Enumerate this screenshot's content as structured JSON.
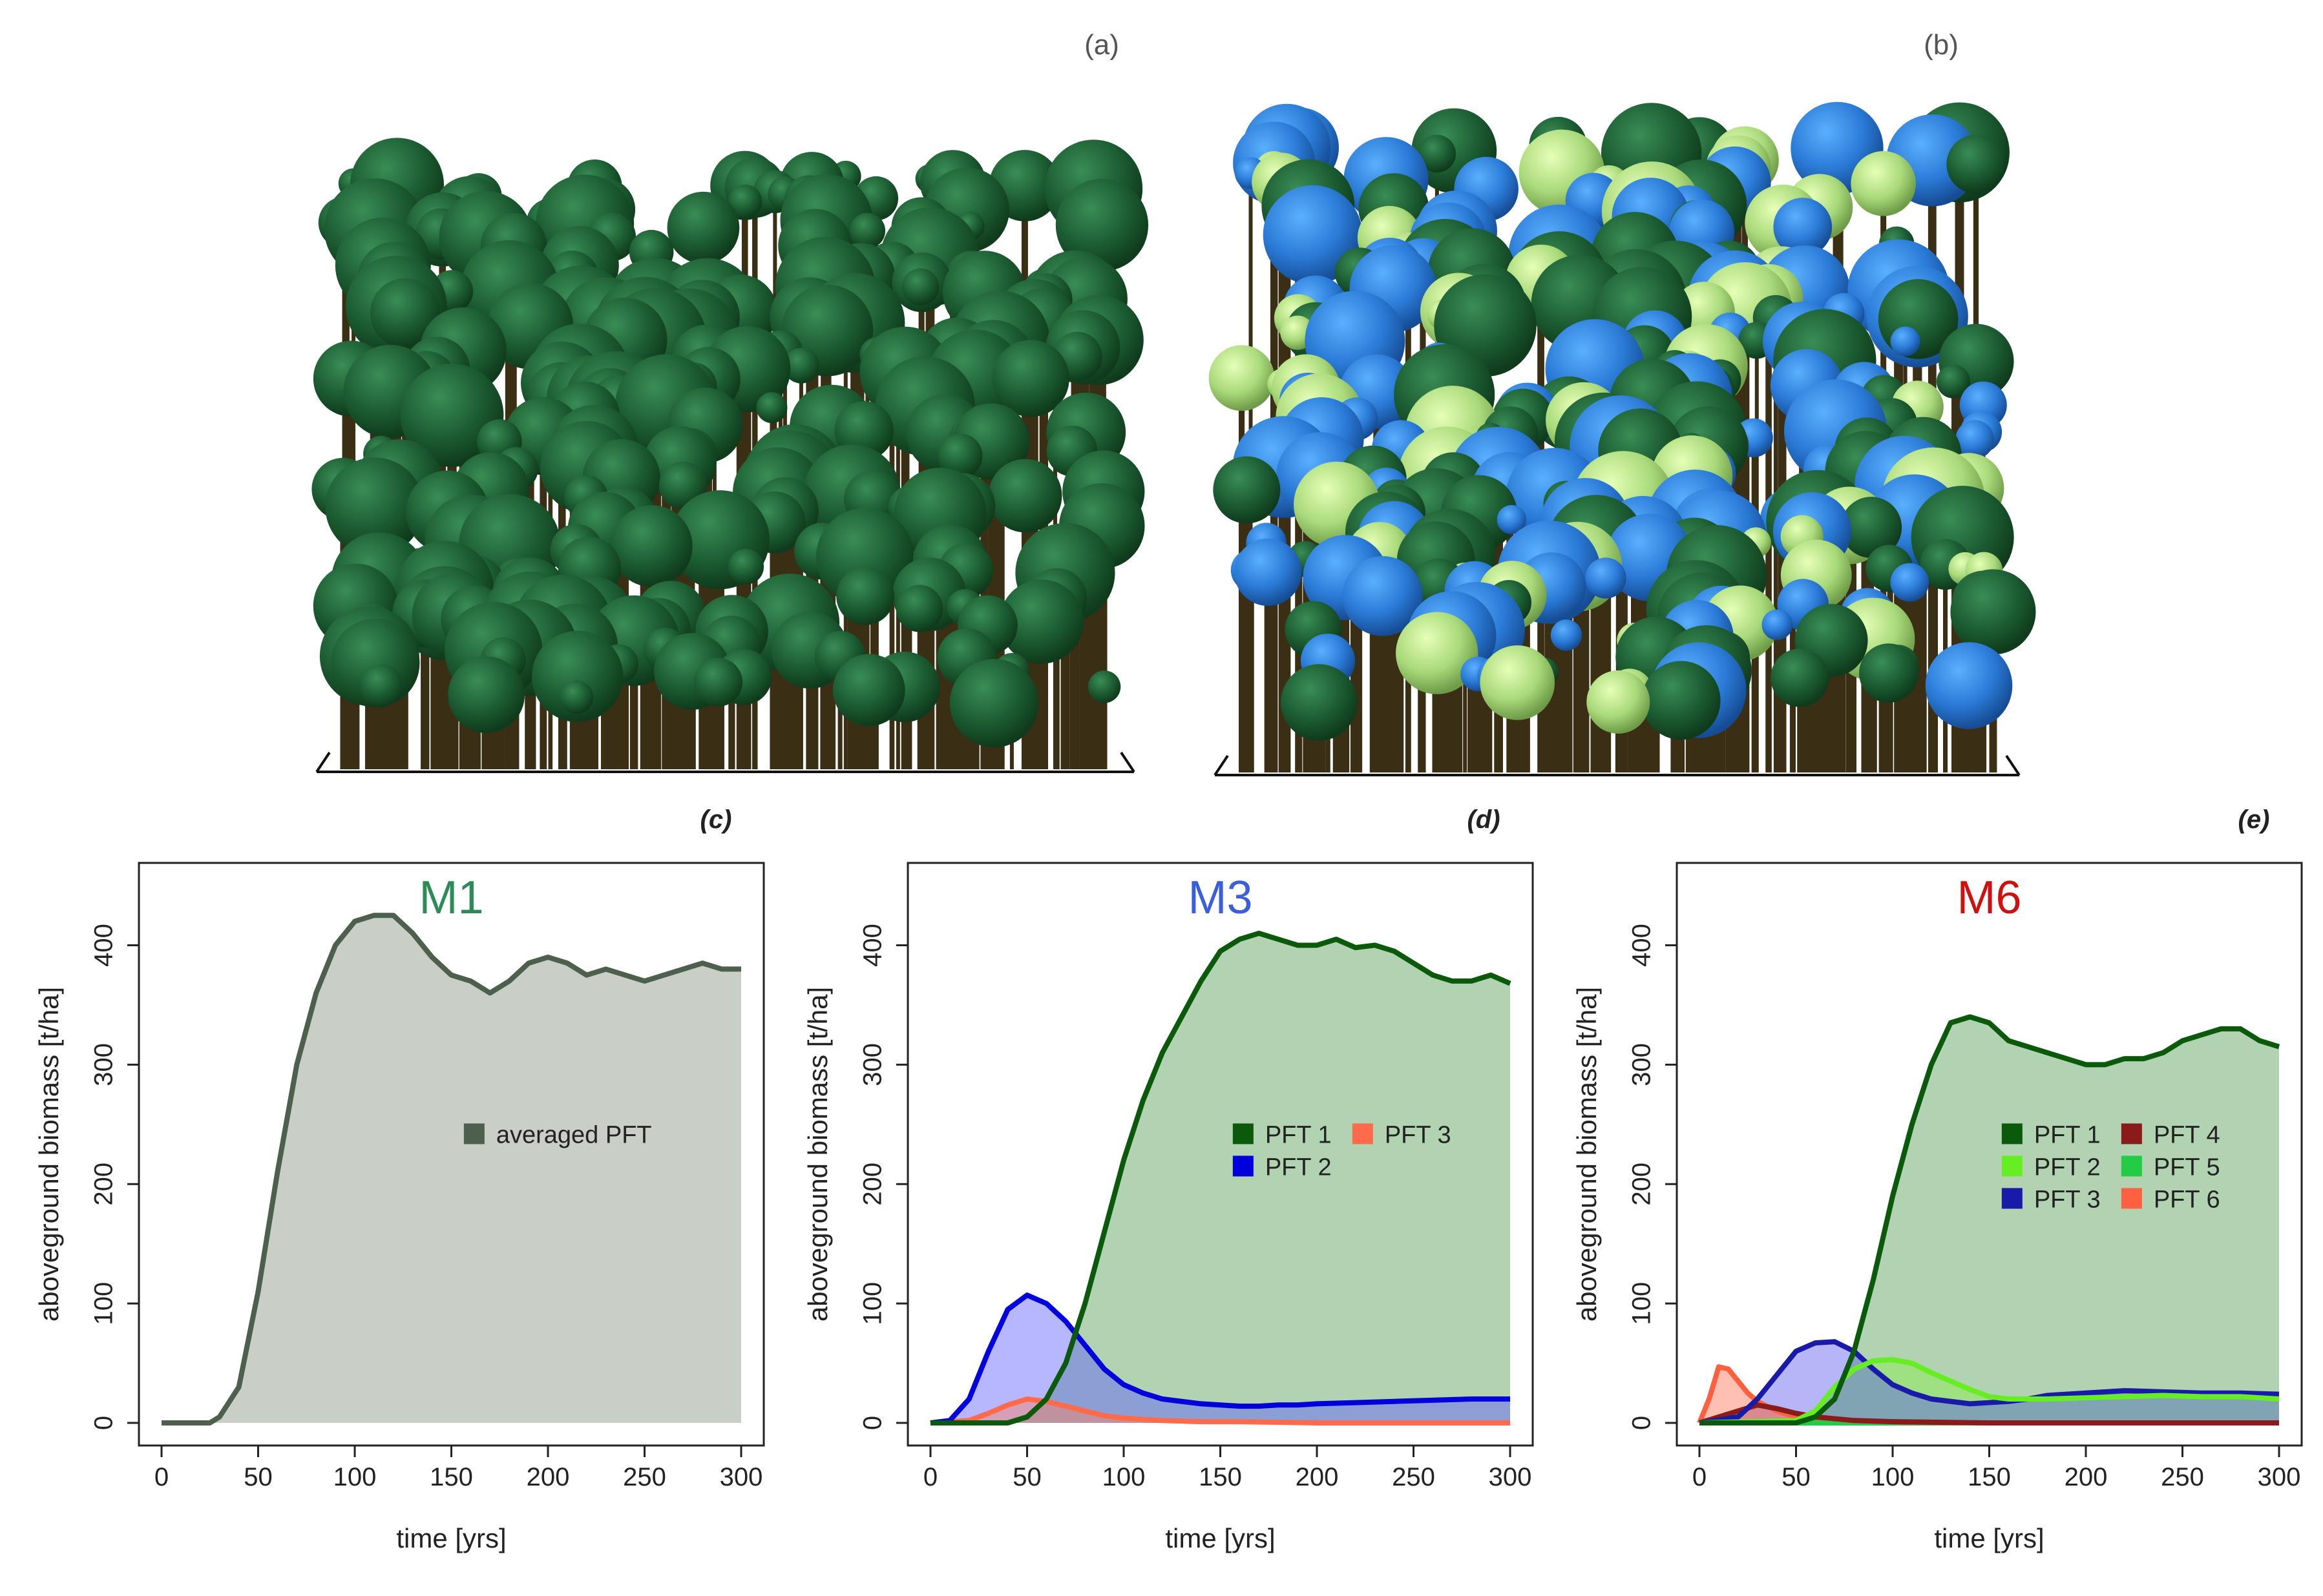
{
  "panel_labels": {
    "a": "(a)",
    "b": "(b)",
    "c": "(c)",
    "d": "(d)",
    "e": "(e)"
  },
  "colors": {
    "pft1": "#0b5a0b",
    "pft2_m3": "#0000dd",
    "pft3_m3": "#ff6a4a",
    "pft2_m6": "#66ee22",
    "pft3_m6": "#1a1aaa",
    "pft4_m6": "#8b1a1a",
    "pft5_m6": "#22cc44",
    "pft6_m6": "#ff6040",
    "averaged": "#4d5f4d",
    "m1_title": "#2e8b57",
    "m3_title": "#3a5fd9",
    "m6_title": "#cc1111"
  },
  "chart_data": [
    {
      "type": "area",
      "title": "M1",
      "xlabel": "time [yrs]",
      "ylabel": "aboveground biomass [t/ha]",
      "xlim": [
        0,
        300
      ],
      "ylim": [
        0,
        450
      ],
      "xticks": [
        0,
        50,
        100,
        150,
        200,
        250,
        300
      ],
      "yticks": [
        0,
        100,
        200,
        300,
        400
      ],
      "legend": [
        "averaged PFT"
      ],
      "series": [
        {
          "name": "averaged PFT",
          "x": [
            0,
            25,
            30,
            40,
            50,
            60,
            70,
            80,
            90,
            100,
            110,
            120,
            130,
            140,
            150,
            160,
            170,
            180,
            190,
            200,
            210,
            220,
            230,
            240,
            250,
            260,
            270,
            280,
            290,
            300
          ],
          "y": [
            0,
            0,
            5,
            30,
            110,
            210,
            300,
            360,
            400,
            420,
            425,
            425,
            410,
            390,
            375,
            370,
            360,
            370,
            385,
            390,
            385,
            375,
            380,
            375,
            370,
            375,
            380,
            385,
            380,
            380
          ]
        }
      ]
    },
    {
      "type": "area",
      "title": "M3",
      "xlabel": "time [yrs]",
      "ylabel": "aboveground biomass [t/ha]",
      "xlim": [
        0,
        300
      ],
      "ylim": [
        0,
        450
      ],
      "xticks": [
        0,
        50,
        100,
        150,
        200,
        250,
        300
      ],
      "yticks": [
        0,
        100,
        200,
        300,
        400
      ],
      "legend": [
        "PFT 1",
        "PFT 2",
        "PFT 3"
      ],
      "series": [
        {
          "name": "PFT 1",
          "x": [
            0,
            40,
            50,
            60,
            70,
            80,
            90,
            100,
            110,
            120,
            130,
            140,
            150,
            160,
            170,
            180,
            190,
            200,
            210,
            220,
            230,
            240,
            250,
            260,
            270,
            280,
            290,
            300
          ],
          "y": [
            0,
            0,
            5,
            20,
            50,
            100,
            160,
            220,
            270,
            310,
            340,
            370,
            395,
            405,
            410,
            405,
            400,
            400,
            405,
            398,
            400,
            395,
            385,
            375,
            370,
            370,
            375,
            368
          ]
        },
        {
          "name": "PFT 2",
          "x": [
            0,
            10,
            20,
            30,
            40,
            50,
            60,
            70,
            80,
            90,
            100,
            110,
            120,
            130,
            140,
            150,
            160,
            170,
            180,
            190,
            200,
            220,
            240,
            260,
            280,
            300
          ],
          "y": [
            0,
            2,
            20,
            60,
            95,
            107,
            100,
            85,
            65,
            45,
            32,
            25,
            20,
            18,
            16,
            15,
            14,
            14,
            15,
            15,
            16,
            17,
            18,
            19,
            20,
            20
          ]
        },
        {
          "name": "PFT 3",
          "x": [
            0,
            20,
            30,
            40,
            50,
            60,
            70,
            80,
            90,
            100,
            120,
            140,
            160,
            200,
            250,
            300
          ],
          "y": [
            0,
            2,
            8,
            15,
            20,
            18,
            14,
            10,
            6,
            4,
            2,
            1,
            1,
            0,
            0,
            0
          ]
        }
      ]
    },
    {
      "type": "area",
      "title": "M6",
      "xlabel": "time [yrs]",
      "ylabel": "aboveground biomass [t/ha]",
      "xlim": [
        0,
        300
      ],
      "ylim": [
        0,
        450
      ],
      "xticks": [
        0,
        50,
        100,
        150,
        200,
        250,
        300
      ],
      "yticks": [
        0,
        100,
        200,
        300,
        400
      ],
      "legend": [
        "PFT 1",
        "PFT 2",
        "PFT 3",
        "PFT 4",
        "PFT 5",
        "PFT 6"
      ],
      "series": [
        {
          "name": "PFT 1",
          "x": [
            0,
            50,
            60,
            70,
            80,
            90,
            100,
            110,
            120,
            130,
            140,
            150,
            160,
            170,
            180,
            190,
            200,
            210,
            220,
            230,
            240,
            250,
            260,
            270,
            280,
            290,
            300
          ],
          "y": [
            0,
            0,
            5,
            20,
            60,
            120,
            190,
            250,
            300,
            335,
            340,
            335,
            320,
            315,
            310,
            305,
            300,
            300,
            305,
            305,
            310,
            320,
            325,
            330,
            330,
            320,
            315
          ]
        },
        {
          "name": "PFT 2",
          "x": [
            0,
            50,
            60,
            70,
            80,
            90,
            100,
            110,
            120,
            130,
            140,
            150,
            160,
            180,
            200,
            220,
            240,
            260,
            280,
            300
          ],
          "y": [
            0,
            2,
            10,
            30,
            45,
            52,
            53,
            50,
            42,
            35,
            28,
            22,
            20,
            20,
            21,
            22,
            23,
            22,
            22,
            20
          ]
        },
        {
          "name": "PFT 3",
          "x": [
            0,
            20,
            30,
            40,
            50,
            60,
            70,
            80,
            90,
            100,
            110,
            120,
            130,
            140,
            150,
            160,
            170,
            180,
            200,
            220,
            240,
            260,
            280,
            300
          ],
          "y": [
            0,
            5,
            20,
            40,
            60,
            67,
            68,
            60,
            45,
            32,
            25,
            20,
            18,
            16,
            17,
            18,
            20,
            23,
            25,
            27,
            26,
            25,
            25,
            24
          ]
        },
        {
          "name": "PFT 4",
          "x": [
            0,
            20,
            30,
            40,
            50,
            60,
            80,
            100,
            150,
            200,
            250,
            300
          ],
          "y": [
            0,
            10,
            15,
            12,
            8,
            5,
            2,
            1,
            0,
            0,
            0,
            0
          ]
        },
        {
          "name": "PFT 5",
          "x": [
            0,
            100,
            150,
            200,
            250,
            300
          ],
          "y": [
            0,
            0,
            0,
            0,
            0,
            0
          ]
        },
        {
          "name": "PFT 6",
          "x": [
            0,
            5,
            10,
            15,
            20,
            25,
            30,
            40,
            50,
            60,
            80,
            100,
            150,
            300
          ],
          "y": [
            0,
            20,
            47,
            45,
            35,
            25,
            18,
            10,
            5,
            2,
            0,
            0,
            0,
            0
          ]
        }
      ]
    }
  ]
}
